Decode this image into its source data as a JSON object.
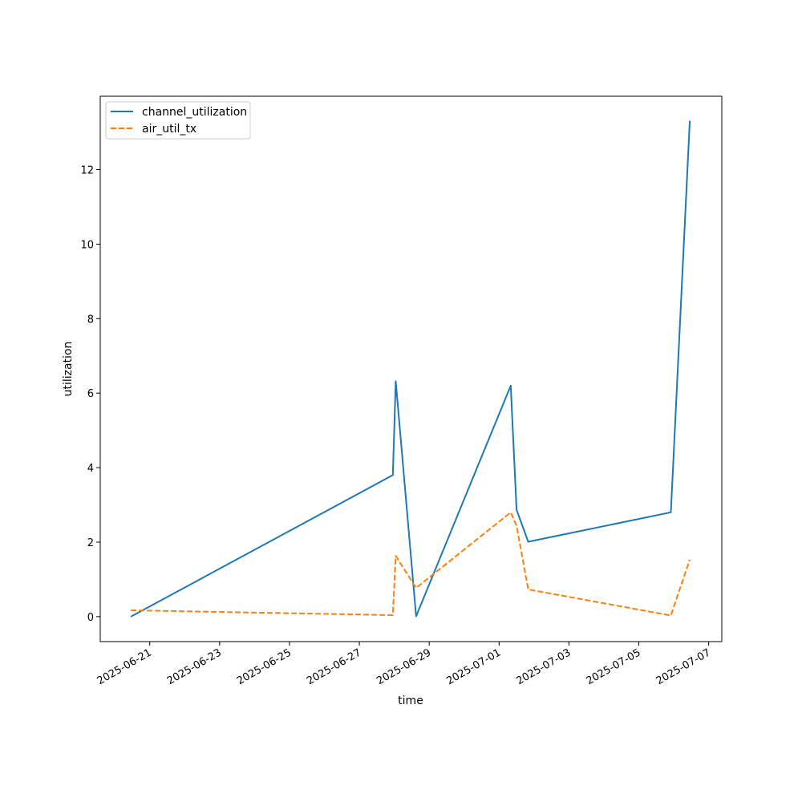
{
  "chart_data": {
    "type": "line",
    "title": "",
    "xlabel": "time",
    "ylabel": "utilization",
    "grid": false,
    "legend_position": "top-left",
    "xlim": [
      "2025-06-19T14:00",
      "2025-07-07T09:00"
    ],
    "ylim": [
      -0.67,
      13.97
    ],
    "x_ticks": [
      "2025-06-21",
      "2025-06-23",
      "2025-06-25",
      "2025-06-27",
      "2025-06-29",
      "2025-07-01",
      "2025-07-03",
      "2025-07-05",
      "2025-07-07"
    ],
    "y_ticks": [
      0,
      2,
      4,
      6,
      8,
      10,
      12
    ],
    "series": [
      {
        "name": "channel_utilization",
        "color": "#1f77b4",
        "dash": "solid",
        "x": [
          "2025-06-20T11:00",
          "2025-06-27T23:00",
          "2025-06-28T01:00",
          "2025-06-28T15:00",
          "2025-07-01T08:00",
          "2025-07-01T12:00",
          "2025-07-01T20:00",
          "2025-07-05T22:00",
          "2025-07-06T11:00"
        ],
        "y": [
          0,
          3.8,
          6.32,
          0.01,
          6.2,
          2.87,
          2.01,
          2.8,
          13.31
        ]
      },
      {
        "name": "air_util_tx",
        "color": "#ff7f0e",
        "dash": "dashed",
        "x": [
          "2025-06-20T11:00",
          "2025-06-27T23:00",
          "2025-06-28T01:00",
          "2025-06-28T15:00",
          "2025-07-01T08:00",
          "2025-07-01T12:00",
          "2025-07-01T20:00",
          "2025-07-05T22:00",
          "2025-07-06T11:00"
        ],
        "y": [
          0.17,
          0.04,
          1.63,
          0.77,
          2.8,
          2.44,
          0.73,
          0.03,
          1.53
        ]
      }
    ]
  }
}
